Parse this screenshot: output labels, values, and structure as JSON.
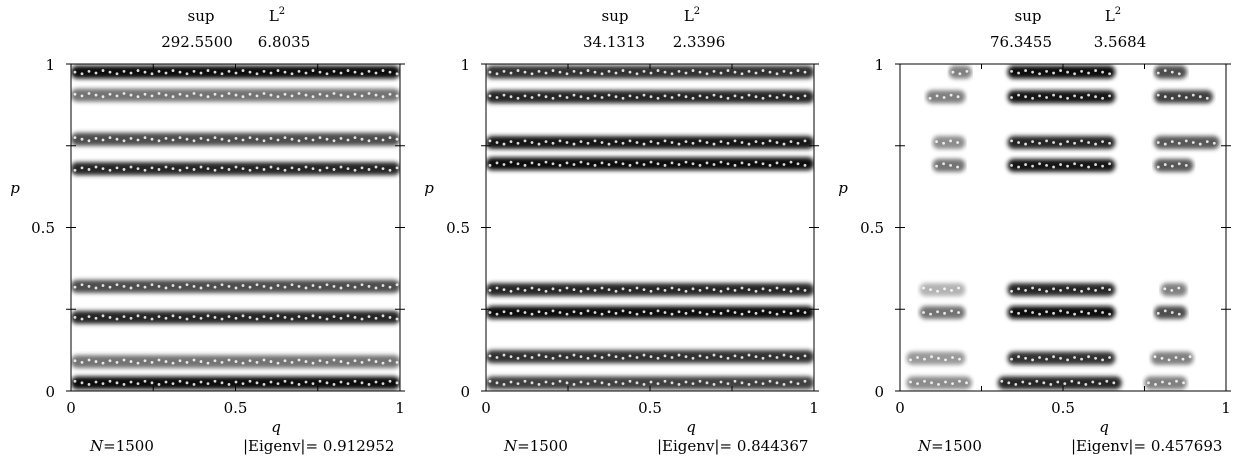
{
  "chart_data": [
    {
      "type": "heatmap",
      "xlabel": "q",
      "ylabel": "p",
      "xlim": [
        0,
        1
      ],
      "ylim": [
        0,
        1
      ],
      "xticks": [
        "0",
        "0.5",
        "1"
      ],
      "yticks": [
        "0",
        "0.5",
        "1"
      ],
      "header": {
        "sup_label": "sup",
        "sup_value": "292.5500",
        "l2_label": "L",
        "l2_sup": "2",
        "l2_value": "6.8035"
      },
      "footer": {
        "n_label": "N",
        "n_value": "=1500",
        "eig_label": "|Eigenv|=",
        "eig_value": "0.912952"
      },
      "bands": [
        {
          "p": 0.025,
          "intensity": 0.95,
          "q_range": [
            0,
            1
          ]
        },
        {
          "p": 0.09,
          "intensity": 0.55,
          "q_range": [
            0,
            1
          ]
        },
        {
          "p": 0.225,
          "intensity": 0.85,
          "q_range": [
            0,
            1
          ]
        },
        {
          "p": 0.32,
          "intensity": 0.7,
          "q_range": [
            0,
            1
          ]
        },
        {
          "p": 0.68,
          "intensity": 0.85,
          "q_range": [
            0,
            1
          ]
        },
        {
          "p": 0.77,
          "intensity": 0.7,
          "q_range": [
            0,
            1
          ]
        },
        {
          "p": 0.905,
          "intensity": 0.55,
          "q_range": [
            0,
            1
          ]
        },
        {
          "p": 0.975,
          "intensity": 0.95,
          "q_range": [
            0,
            1
          ]
        }
      ]
    },
    {
      "type": "heatmap",
      "xlabel": "q",
      "ylabel": "p",
      "xlim": [
        0,
        1
      ],
      "ylim": [
        0,
        1
      ],
      "xticks": [
        "0",
        "0.5",
        "1"
      ],
      "yticks": [
        "0",
        "0.5",
        "1"
      ],
      "header": {
        "sup_label": "sup",
        "sup_value": "34.1313",
        "l2_label": "L",
        "l2_sup": "2",
        "l2_value": "2.3396"
      },
      "footer": {
        "n_label": "N",
        "n_value": "=1500",
        "eig_label": "|Eigenv|=",
        "eig_value": "0.844367"
      },
      "bands": [
        {
          "p": 0.025,
          "intensity": 0.75,
          "q_range": [
            0,
            1
          ]
        },
        {
          "p": 0.105,
          "intensity": 0.8,
          "q_range": [
            0,
            1
          ]
        },
        {
          "p": 0.24,
          "intensity": 0.95,
          "q_range": [
            0,
            1
          ]
        },
        {
          "p": 0.31,
          "intensity": 0.85,
          "q_range": [
            0,
            1
          ]
        },
        {
          "p": 0.695,
          "intensity": 0.95,
          "q_range": [
            0,
            1
          ]
        },
        {
          "p": 0.76,
          "intensity": 0.9,
          "q_range": [
            0,
            1
          ]
        },
        {
          "p": 0.9,
          "intensity": 0.85,
          "q_range": [
            0,
            1
          ]
        },
        {
          "p": 0.975,
          "intensity": 0.8,
          "q_range": [
            0,
            1
          ]
        }
      ]
    },
    {
      "type": "heatmap",
      "xlabel": "q",
      "ylabel": "p",
      "xlim": [
        0,
        1
      ],
      "ylim": [
        0,
        1
      ],
      "xticks": [
        "0",
        "0.5",
        "1"
      ],
      "yticks": [
        "0",
        "0.5",
        "1"
      ],
      "header": {
        "sup_label": "sup",
        "sup_value": "76.3455",
        "l2_label": "L",
        "l2_sup": "2",
        "l2_value": "3.5684"
      },
      "footer": {
        "n_label": "N",
        "n_value": "=1500",
        "eig_label": "|Eigenv|=",
        "eig_value": "0.457693"
      },
      "bands": [
        {
          "p": 0.025,
          "intensity": 0.85,
          "q_range": [
            0.3,
            0.68
          ]
        },
        {
          "p": 0.025,
          "intensity": 0.45,
          "q_range": [
            0.02,
            0.22
          ]
        },
        {
          "p": 0.025,
          "intensity": 0.5,
          "q_range": [
            0.75,
            0.88
          ]
        },
        {
          "p": 0.1,
          "intensity": 0.8,
          "q_range": [
            0.33,
            0.66
          ]
        },
        {
          "p": 0.1,
          "intensity": 0.4,
          "q_range": [
            0.02,
            0.2
          ]
        },
        {
          "p": 0.1,
          "intensity": 0.5,
          "q_range": [
            0.77,
            0.9
          ]
        },
        {
          "p": 0.24,
          "intensity": 0.95,
          "q_range": [
            0.33,
            0.66
          ]
        },
        {
          "p": 0.24,
          "intensity": 0.55,
          "q_range": [
            0.06,
            0.2
          ]
        },
        {
          "p": 0.24,
          "intensity": 0.7,
          "q_range": [
            0.78,
            0.88
          ]
        },
        {
          "p": 0.31,
          "intensity": 0.85,
          "q_range": [
            0.33,
            0.66
          ]
        },
        {
          "p": 0.31,
          "intensity": 0.3,
          "q_range": [
            0.06,
            0.2
          ]
        },
        {
          "p": 0.31,
          "intensity": 0.5,
          "q_range": [
            0.8,
            0.88
          ]
        },
        {
          "p": 0.69,
          "intensity": 0.9,
          "q_range": [
            0.33,
            0.66
          ]
        },
        {
          "p": 0.69,
          "intensity": 0.55,
          "q_range": [
            0.1,
            0.2
          ]
        },
        {
          "p": 0.69,
          "intensity": 0.65,
          "q_range": [
            0.78,
            0.9
          ]
        },
        {
          "p": 0.76,
          "intensity": 0.85,
          "q_range": [
            0.33,
            0.66
          ]
        },
        {
          "p": 0.76,
          "intensity": 0.45,
          "q_range": [
            0.1,
            0.2
          ]
        },
        {
          "p": 0.76,
          "intensity": 0.65,
          "q_range": [
            0.78,
            0.98
          ]
        },
        {
          "p": 0.9,
          "intensity": 0.9,
          "q_range": [
            0.33,
            0.66
          ]
        },
        {
          "p": 0.9,
          "intensity": 0.5,
          "q_range": [
            0.08,
            0.2
          ]
        },
        {
          "p": 0.9,
          "intensity": 0.75,
          "q_range": [
            0.78,
            0.96
          ]
        },
        {
          "p": 0.975,
          "intensity": 0.95,
          "q_range": [
            0.33,
            0.66
          ]
        },
        {
          "p": 0.975,
          "intensity": 0.5,
          "q_range": [
            0.15,
            0.22
          ]
        },
        {
          "p": 0.975,
          "intensity": 0.7,
          "q_range": [
            0.78,
            0.88
          ]
        }
      ]
    }
  ]
}
